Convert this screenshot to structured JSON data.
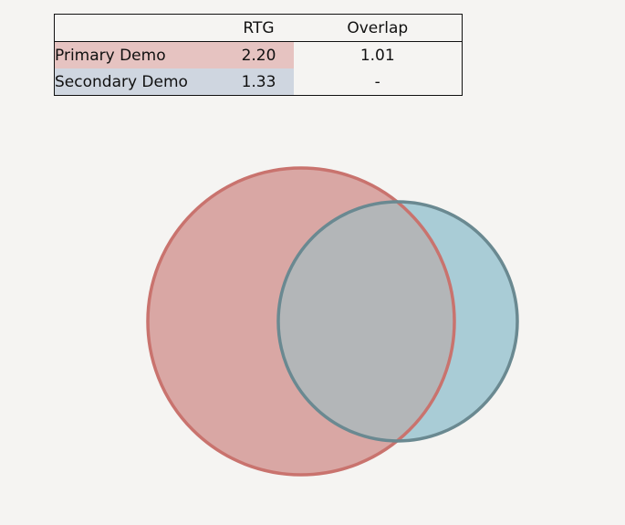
{
  "table": {
    "headers": {
      "label": "",
      "rtg": "RTG",
      "overlap": "Overlap"
    },
    "rows": [
      {
        "label": "Primary Demo",
        "rtg": "2.20",
        "overlap": "1.01"
      },
      {
        "label": "Secondary Demo",
        "rtg": "1.33",
        "overlap": "-"
      }
    ]
  },
  "venn": {
    "sets": [
      {
        "label": "Primary Demo",
        "rtg": 2.2,
        "fill": "#d9a7a4",
        "stroke": "#c9736e"
      },
      {
        "label": "Secondary Demo",
        "rtg": 1.33,
        "fill": "#a9ccd6",
        "stroke": "#6a8991"
      }
    ],
    "overlap": 1.01,
    "overlap_fill": "#b3b6b8"
  }
}
